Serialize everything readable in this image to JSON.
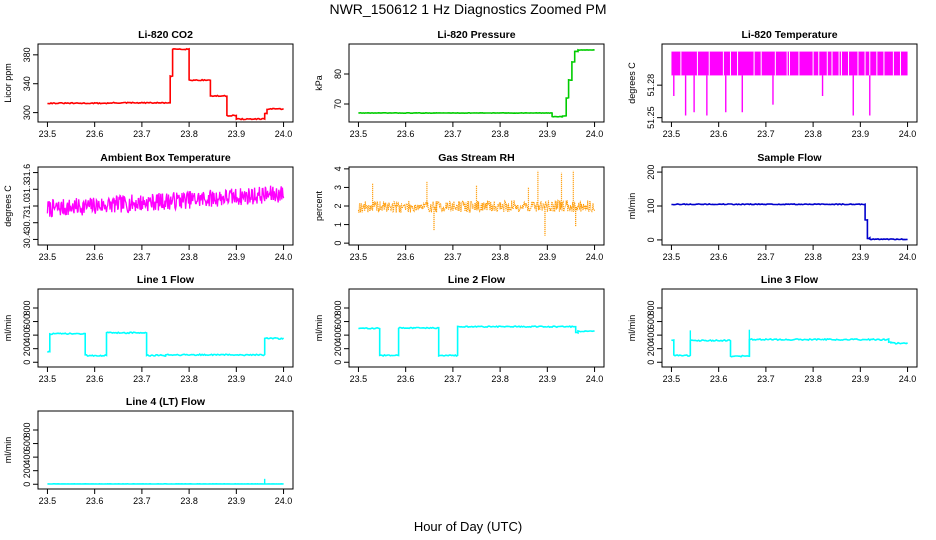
{
  "title": "NWR_150612  1 Hz Diagnostics Zoomed PM",
  "xlabel": "Hour of Day (UTC)",
  "chart_data": [
    {
      "type": "line",
      "title": "Li-820 CO2",
      "ylabel": "Licor ppm",
      "xlim": [
        23.48,
        24.02
      ],
      "xticks": [
        "23.5",
        "23.6",
        "23.7",
        "23.8",
        "23.9",
        "24.0"
      ],
      "ylim": [
        287,
        395
      ],
      "yticks": [
        "300",
        "340",
        "380"
      ],
      "color": "#ff0000",
      "series": [
        {
          "kind": "step",
          "noise": 0.7,
          "spikes": [],
          "segments": [
            [
              23.5,
              23.635,
              313
            ],
            [
              23.635,
              23.76,
              313.5
            ],
            [
              23.76,
              23.765,
              350
            ],
            [
              23.765,
              23.8,
              388
            ],
            [
              23.8,
              23.845,
              345
            ],
            [
              23.845,
              23.88,
              323
            ],
            [
              23.88,
              23.9,
              296
            ],
            [
              23.9,
              23.96,
              291
            ],
            [
              23.96,
              23.965,
              299
            ],
            [
              23.965,
              24.0,
              305
            ]
          ]
        }
      ]
    },
    {
      "type": "line",
      "title": "Li-820 Pressure",
      "ylabel": "kPa",
      "xlim": [
        23.48,
        24.02
      ],
      "xticks": [
        "23.5",
        "23.6",
        "23.7",
        "23.8",
        "23.9",
        "24.0"
      ],
      "ylim": [
        64,
        90
      ],
      "yticks": [
        "70",
        "80"
      ],
      "color": "#00cc00",
      "series": [
        {
          "kind": "step",
          "noise": 0.08,
          "spikes": [],
          "segments": [
            [
              23.5,
              23.91,
              67
            ],
            [
              23.91,
              23.932,
              65.8
            ],
            [
              23.932,
              23.94,
              66
            ],
            [
              23.94,
              23.945,
              72
            ],
            [
              23.945,
              23.952,
              78
            ],
            [
              23.952,
              23.958,
              84
            ],
            [
              23.958,
              23.965,
              87.5
            ],
            [
              23.965,
              24.0,
              88
            ]
          ]
        }
      ]
    },
    {
      "type": "line",
      "title": "Li-820 Temperature",
      "ylabel": "degrees C",
      "xlim": [
        23.48,
        24.02
      ],
      "xticks": [
        "23.5",
        "23.6",
        "23.7",
        "23.8",
        "23.9",
        "24.0"
      ],
      "ylim": [
        51.246,
        51.318
      ],
      "yticks": [
        "51.25",
        "51.28"
      ],
      "color": "#ff00ff",
      "series": [
        {
          "kind": "band",
          "low": 51.289,
          "high": 51.311,
          "gaps": [
            23.52,
            23.555,
            23.58,
            23.61,
            23.625,
            23.64,
            23.675,
            23.69,
            23.72,
            23.745,
            23.75,
            23.77,
            23.8,
            23.812,
            23.83,
            23.84,
            23.855,
            23.86,
            23.875,
            23.895,
            23.91,
            23.92,
            23.935,
            23.95,
            23.97,
            23.985
          ],
          "drops": [
            [
              23.505,
              51.27
            ],
            [
              23.53,
              51.252
            ],
            [
              23.548,
              51.255
            ],
            [
              23.575,
              51.252
            ],
            [
              23.615,
              51.255
            ],
            [
              23.65,
              51.255
            ],
            [
              23.715,
              51.262
            ],
            [
              23.82,
              51.27
            ],
            [
              23.885,
              51.252
            ],
            [
              23.92,
              51.252
            ]
          ]
        }
      ]
    },
    {
      "type": "line",
      "title": "Ambient Box Temperature",
      "ylabel": "degrees C",
      "xlim": [
        23.48,
        24.02
      ],
      "xticks": [
        "23.5",
        "23.6",
        "23.7",
        "23.8",
        "23.9",
        "24.0"
      ],
      "ylim": [
        30.3,
        31.7
      ],
      "yticks": [
        "30.4",
        "30.7",
        "31.0",
        "31.3",
        "31.6"
      ],
      "color": "#ff00ff",
      "series": [
        {
          "kind": "noise",
          "base_start": 30.95,
          "base_end": 31.22,
          "amp": 0.16,
          "samples": 400,
          "seed": 7,
          "width": 1.3
        }
      ]
    },
    {
      "type": "line",
      "title": "Gas Stream RH",
      "ylabel": "percent",
      "xlim": [
        23.48,
        24.02
      ],
      "xticks": [
        "23.5",
        "23.6",
        "23.7",
        "23.8",
        "23.9",
        "24.0"
      ],
      "ylim": [
        -0.1,
        4.1
      ],
      "yticks": [
        "0",
        "1",
        "2",
        "3",
        "4"
      ],
      "color": "#ff9900",
      "series": [
        {
          "kind": "noise",
          "base_start": 1.95,
          "base_end": 2.0,
          "amp": 0.32,
          "samples": 450,
          "seed": 19,
          "width": 1.0,
          "dotted": true,
          "spikes": [
            [
              23.53,
              3.2
            ],
            [
              23.645,
              3.3
            ],
            [
              23.66,
              0.7
            ],
            [
              23.75,
              3.1
            ],
            [
              23.86,
              3.0
            ],
            [
              23.88,
              3.9
            ],
            [
              23.895,
              0.4
            ],
            [
              23.93,
              3.8
            ],
            [
              23.955,
              3.9
            ],
            [
              23.96,
              0.9
            ]
          ]
        }
      ]
    },
    {
      "type": "line",
      "title": "Sample Flow",
      "ylabel": "ml/min",
      "xlim": [
        23.48,
        24.02
      ],
      "xticks": [
        "23.5",
        "23.6",
        "23.7",
        "23.8",
        "23.9",
        "24.0"
      ],
      "ylim": [
        -15,
        215
      ],
      "yticks": [
        "0",
        "100",
        "200"
      ],
      "color": "#0000cc",
      "series": [
        {
          "kind": "step",
          "noise": 1.2,
          "spikes": [],
          "segments": [
            [
              23.5,
              23.91,
              105
            ],
            [
              23.91,
              23.915,
              60
            ],
            [
              23.915,
              23.92,
              5
            ],
            [
              23.92,
              24.0,
              2
            ]
          ]
        }
      ]
    },
    {
      "type": "line",
      "title": "Line 1 Flow",
      "ylabel": "ml/min",
      "xlim": [
        23.48,
        24.02
      ],
      "xticks": [
        "23.5",
        "23.6",
        "23.7",
        "23.8",
        "23.9",
        "24.0"
      ],
      "ylim": [
        -70,
        1080
      ],
      "yticks": [
        "0",
        "200",
        "400",
        "600",
        "800"
      ],
      "color": "#00ffff",
      "series": [
        {
          "kind": "step",
          "noise": 10,
          "spikes": [],
          "segments": [
            [
              23.5,
              23.505,
              150
            ],
            [
              23.505,
              23.58,
              420
            ],
            [
              23.58,
              23.625,
              100
            ],
            [
              23.625,
              23.71,
              435
            ],
            [
              23.71,
              23.75,
              100
            ],
            [
              23.75,
              23.96,
              110
            ],
            [
              23.96,
              24.0,
              350
            ]
          ]
        }
      ]
    },
    {
      "type": "line",
      "title": "Line 2 Flow",
      "ylabel": "ml/min",
      "xlim": [
        23.48,
        24.02
      ],
      "xticks": [
        "23.5",
        "23.6",
        "23.7",
        "23.8",
        "23.9",
        "24.0"
      ],
      "ylim": [
        -70,
        1080
      ],
      "yticks": [
        "0",
        "200",
        "400",
        "600",
        "800"
      ],
      "color": "#00ffff",
      "series": [
        {
          "kind": "step",
          "noise": 8,
          "spikes": [],
          "segments": [
            [
              23.5,
              23.545,
              500
            ],
            [
              23.545,
              23.585,
              100
            ],
            [
              23.585,
              23.67,
              505
            ],
            [
              23.67,
              23.71,
              100
            ],
            [
              23.71,
              23.96,
              525
            ],
            [
              23.96,
              23.965,
              440
            ],
            [
              23.965,
              24.0,
              455
            ]
          ]
        }
      ]
    },
    {
      "type": "line",
      "title": "Line 3 Flow",
      "ylabel": "ml/min",
      "xlim": [
        23.48,
        24.02
      ],
      "xticks": [
        "23.5",
        "23.6",
        "23.7",
        "23.8",
        "23.9",
        "24.0"
      ],
      "ylim": [
        -70,
        1080
      ],
      "yticks": [
        "0",
        "200",
        "400",
        "600",
        "800"
      ],
      "color": "#00ffff",
      "series": [
        {
          "kind": "step",
          "noise": 10,
          "spikes": [
            [
              23.54,
              470
            ],
            [
              23.665,
              480
            ]
          ],
          "segments": [
            [
              23.5,
              23.505,
              330
            ],
            [
              23.505,
              23.54,
              100
            ],
            [
              23.54,
              23.625,
              320
            ],
            [
              23.625,
              23.665,
              90
            ],
            [
              23.665,
              23.96,
              335
            ],
            [
              23.96,
              23.965,
              300
            ],
            [
              23.965,
              24.0,
              280
            ]
          ]
        }
      ]
    },
    {
      "type": "line",
      "title": "Line 4 (LT) Flow",
      "ylabel": "ml/min",
      "xlim": [
        23.48,
        24.02
      ],
      "xticks": [
        "23.5",
        "23.6",
        "23.7",
        "23.8",
        "23.9",
        "24.0"
      ],
      "ylim": [
        -70,
        1080
      ],
      "yticks": [
        "0",
        "200",
        "400",
        "600",
        "800"
      ],
      "color": "#00ffff",
      "series": [
        {
          "kind": "step",
          "noise": 1.5,
          "spikes": [
            [
              23.96,
              80
            ]
          ],
          "segments": [
            [
              23.5,
              24.0,
              5
            ]
          ]
        }
      ]
    }
  ]
}
